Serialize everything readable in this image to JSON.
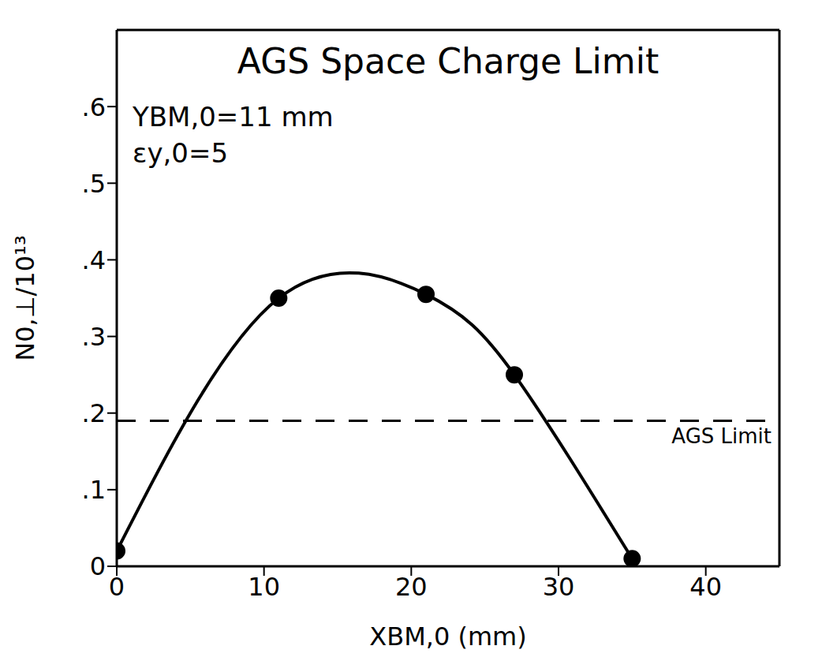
{
  "chart_data": {
    "type": "line",
    "title": "AGS Space Charge Limit",
    "annotations": [
      "YBM,0=11 mm",
      "εy,0=5"
    ],
    "x_label": "XBM,0 (mm)",
    "y_label": "N0,⊥/10¹³",
    "x": [
      0,
      11,
      21,
      27,
      35
    ],
    "values": [
      0.02,
      0.35,
      0.355,
      0.25,
      0.01
    ],
    "color": "#000000",
    "marker": "circle",
    "line_style": "solid",
    "reference_line": {
      "value": 0.19,
      "label": "AGS Limit",
      "line_style": "dashed"
    },
    "xlim": [
      0,
      45
    ],
    "xticks": [
      0,
      10,
      20,
      30,
      40
    ],
    "ylim": [
      0,
      0.7
    ],
    "yticks": [
      0,
      {
        "value": 0.1,
        "label": ".1"
      },
      {
        "value": 0.2,
        "label": ".2"
      },
      {
        "value": 0.3,
        "label": ".3"
      },
      {
        "value": 0.4,
        "label": ".4"
      },
      {
        "value": 0.5,
        "label": ".5"
      },
      {
        "value": 0.6,
        "label": ".6"
      }
    ],
    "grid": false
  }
}
